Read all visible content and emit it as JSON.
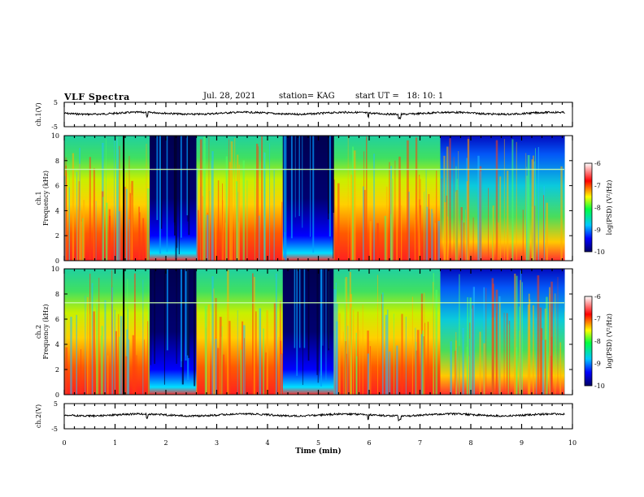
{
  "header": {
    "title": "VLF Spectra",
    "date": "Jul. 28, 2021",
    "station": "station= KAG",
    "start": "start UT =   18: 10: 1"
  },
  "chart_data": [
    {
      "type": "line",
      "name": "ch1-waveform",
      "ylabel": "ch.1(V)",
      "ylim": [
        -5,
        5
      ],
      "y_ticks": [
        "5",
        "-5"
      ],
      "xlim": [
        0,
        10
      ]
    },
    {
      "type": "heatmap",
      "name": "ch1-spectrogram",
      "ylabel": "ch.1\nFrequency (kHz)",
      "ylim": [
        0,
        10
      ],
      "y_ticks": [
        "10",
        "8",
        "6",
        "4",
        "2",
        "0"
      ],
      "xlim": [
        0,
        10
      ],
      "colorbar": {
        "label": "log(PSD) (V²/Hz)",
        "range": [
          -10,
          -6
        ],
        "ticks": [
          "-6",
          "-7",
          "-8",
          "-9",
          "-10"
        ]
      }
    },
    {
      "type": "heatmap",
      "name": "ch2-spectrogram",
      "ylabel": "ch.2\nFrequency (kHz)",
      "ylim": [
        0,
        10
      ],
      "y_ticks": [
        "10",
        "8",
        "6",
        "4",
        "2",
        "0"
      ],
      "xlim": [
        0,
        10
      ],
      "colorbar": {
        "label": "log(PSD) (V²/Hz)",
        "range": [
          -10,
          -6
        ],
        "ticks": [
          "-6",
          "-7",
          "-8",
          "-9",
          "-10"
        ]
      }
    },
    {
      "type": "line",
      "name": "ch2-waveform",
      "ylabel": "ch.2(V)",
      "ylim": [
        -5,
        5
      ],
      "y_ticks": [
        "5",
        "-5"
      ],
      "xlim": [
        0,
        10
      ],
      "xlabel": "Time (min)",
      "x_ticks": [
        "0",
        "1",
        "2",
        "3",
        "4",
        "5",
        "6",
        "7",
        "8",
        "9",
        "10"
      ]
    }
  ],
  "colors": {
    "line": "#000000"
  }
}
